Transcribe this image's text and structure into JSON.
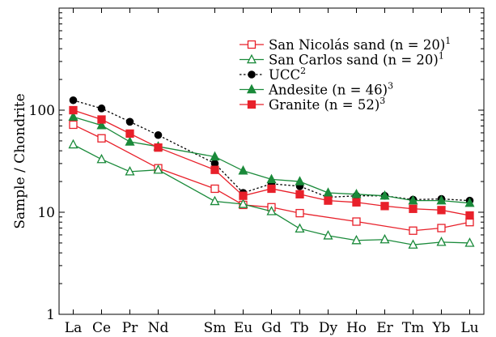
{
  "chart_data": {
    "type": "line",
    "yscale": "log",
    "ylim": [
      1,
      1000
    ],
    "ylabel": "Sample / Chondrite",
    "y_tick_labels": [
      "1",
      "10",
      "100"
    ],
    "categories": [
      "La",
      "Ce",
      "Pr",
      "Nd",
      "Sm",
      "Eu",
      "Gd",
      "Tb",
      "Dy",
      "Ho",
      "Er",
      "Tm",
      "Yb",
      "Lu"
    ],
    "category_index": [
      0,
      1,
      2,
      3,
      5,
      6,
      7,
      8,
      9,
      10,
      11,
      12,
      13,
      14
    ],
    "x_min": -0.5,
    "x_max": 14.5,
    "legend_position": "top-right",
    "series": [
      {
        "name": "San Nicolás sand (n = 20)",
        "superscript": "1",
        "color": "#e8202a",
        "line_style": "solid",
        "marker": "square-open",
        "values": [
          72,
          53,
          null,
          27,
          17,
          11.8,
          11.2,
          9.8,
          null,
          8.1,
          null,
          6.6,
          7.0,
          8.0
        ]
      },
      {
        "name": "San Carlos sand (n = 20)",
        "superscript": "1",
        "color": "#1a8a3a",
        "line_style": "solid",
        "marker": "triangle-open",
        "values": [
          46,
          33,
          25,
          26,
          12.8,
          12,
          10.2,
          6.9,
          5.9,
          5.3,
          5.4,
          4.8,
          5.1,
          5.0
        ]
      },
      {
        "name": "UCC",
        "superscript": "2",
        "color": "#000000",
        "line_style": "dotted",
        "marker": "circle-filled",
        "values": [
          125,
          104,
          77,
          57,
          30,
          15.5,
          19,
          18,
          14,
          14.5,
          14.5,
          13.3,
          13.5,
          13.0
        ]
      },
      {
        "name": "Andesite (n = 46)",
        "superscript": "3",
        "color": "#1a8a3a",
        "line_style": "solid",
        "marker": "triangle-filled",
        "values": [
          86,
          71,
          49,
          44,
          35,
          25.5,
          21,
          20,
          15.5,
          15,
          14.5,
          13,
          13,
          12.3
        ]
      },
      {
        "name": "Granite (n = 52)",
        "superscript": "3",
        "color": "#e8202a",
        "line_style": "solid",
        "marker": "square-filled",
        "values": [
          100,
          81,
          59,
          43,
          26,
          14.5,
          17,
          15,
          13,
          12.5,
          11.5,
          10.8,
          10.5,
          9.3
        ]
      }
    ]
  }
}
